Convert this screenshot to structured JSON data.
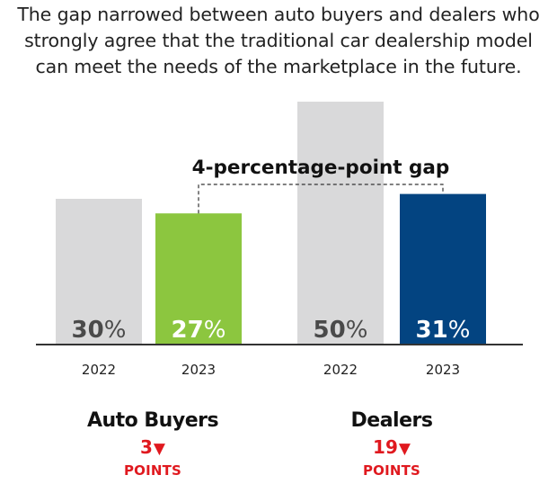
{
  "title_lines": [
    "The gap narrowed between auto buyers and dealers who",
    "strongly agree that the traditional car dealership model",
    "can meet the needs of the marketplace in the future."
  ],
  "colors": {
    "bar_2022": "#d9d9da",
    "auto_buyers_2023": "#8cc63f",
    "dealers_2023": "#034481",
    "label_on_gray": "#4a4a4a",
    "label_on_color": "#ffffff",
    "change": "#e0191f",
    "axis": "#333333"
  },
  "chart_data": {
    "type": "bar",
    "groups": [
      {
        "name": "Auto Buyers",
        "bars": [
          {
            "year": "2022",
            "value": 30,
            "label": "30%"
          },
          {
            "year": "2023",
            "value": 27,
            "label": "27%"
          }
        ],
        "change_value": "3",
        "change_arrow": "▼",
        "change_units": "POINTS"
      },
      {
        "name": "Dealers",
        "bars": [
          {
            "year": "2022",
            "value": 50,
            "label": "50%"
          },
          {
            "year": "2023",
            "value": 31,
            "label": "31%"
          }
        ],
        "change_value": "19",
        "change_arrow": "▼",
        "change_units": "POINTS"
      }
    ],
    "annotation": "4-percentage-point gap",
    "ylim": [
      0,
      50
    ]
  }
}
